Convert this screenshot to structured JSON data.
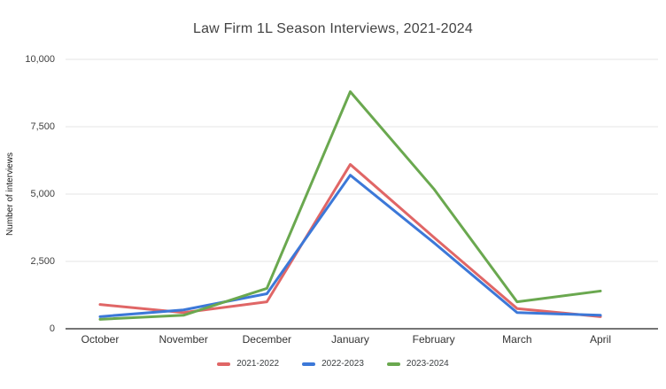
{
  "title": "Law Firm 1L Season Interviews, 2021-2024",
  "chart_data": {
    "type": "line",
    "title": "Law Firm 1L Season Interviews, 2021-2024",
    "xlabel": "",
    "ylabel": "Number of interviews",
    "categories": [
      "October",
      "November",
      "December",
      "January",
      "February",
      "March",
      "April"
    ],
    "series": [
      {
        "name": "2021-2022",
        "color": "#e06666",
        "values": [
          900,
          600,
          1000,
          6100,
          3400,
          750,
          450
        ]
      },
      {
        "name": "2022-2023",
        "color": "#3c78d8",
        "values": [
          450,
          700,
          1300,
          5700,
          3200,
          600,
          500
        ]
      },
      {
        "name": "2023-2024",
        "color": "#6aa84f",
        "values": [
          350,
          500,
          1500,
          8800,
          5200,
          1000,
          1400
        ]
      }
    ],
    "ylim": [
      0,
      10000
    ],
    "yticks": [
      0,
      2500,
      5000,
      7500,
      10000
    ],
    "ytick_labels": [
      "0",
      "2,500",
      "5,000",
      "7,500",
      "10,000"
    ],
    "grid": "horizontal",
    "legend_position": "bottom",
    "axis_color": "#757575",
    "gridline_color": "#e6e6e6",
    "background_color": "#ffffff"
  }
}
